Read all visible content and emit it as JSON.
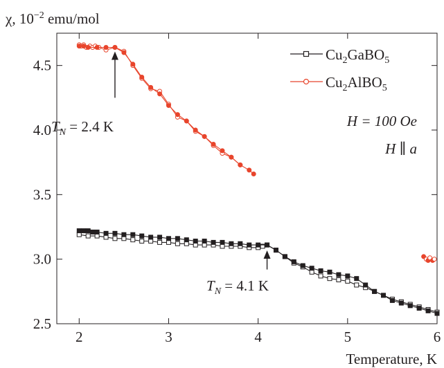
{
  "chart_data": {
    "type": "scatter",
    "title": "",
    "ylabel": "χ, 10",
    "ylabel_exp": "−2",
    "ylabel_unit": " emu/mol",
    "xlabel": "Temperature, K",
    "xlim": [
      1.75,
      6.0
    ],
    "ylim": [
      2.5,
      4.75
    ],
    "xticks": [
      2,
      3,
      4,
      5,
      6
    ],
    "yticks": [
      2.5,
      3.0,
      3.5,
      4.0,
      4.5
    ],
    "xtick_labels": [
      "2",
      "3",
      "4",
      "5",
      "6"
    ],
    "ytick_labels": [
      "2.5",
      "3.0",
      "3.5",
      "4.0",
      "4.5"
    ],
    "legend_position": "top-right",
    "series": [
      {
        "name_main": "Cu",
        "name_sub1": "2",
        "name_mid": "GaBO",
        "name_sub2": "5",
        "color": "#231f20",
        "marker": "square",
        "heating": {
          "x": [
            2.0,
            2.05,
            2.1,
            2.15,
            2.2,
            2.3,
            2.4,
            2.5,
            2.6,
            2.7,
            2.8,
            2.9,
            3.0,
            3.1,
            3.2,
            3.3,
            3.4,
            3.5,
            3.6,
            3.7,
            3.8,
            3.9,
            4.0,
            4.1,
            4.2,
            4.3,
            4.4,
            4.5,
            4.6,
            4.7,
            4.8,
            4.9,
            5.0,
            5.1,
            5.2,
            5.3,
            5.4,
            5.5,
            5.6,
            5.7,
            5.8,
            5.9,
            6.0
          ],
          "y": [
            3.22,
            3.22,
            3.22,
            3.21,
            3.21,
            3.2,
            3.2,
            3.19,
            3.19,
            3.18,
            3.17,
            3.17,
            3.16,
            3.16,
            3.15,
            3.14,
            3.14,
            3.13,
            3.13,
            3.12,
            3.12,
            3.11,
            3.11,
            3.11,
            3.07,
            3.02,
            2.98,
            2.95,
            2.93,
            2.91,
            2.9,
            2.88,
            2.87,
            2.85,
            2.8,
            2.75,
            2.72,
            2.68,
            2.66,
            2.64,
            2.62,
            2.6,
            2.58
          ]
        },
        "cooling": {
          "x": [
            2.0,
            2.1,
            2.2,
            2.3,
            2.4,
            2.5,
            2.6,
            2.7,
            2.8,
            2.9,
            3.0,
            3.1,
            3.2,
            3.3,
            3.4,
            3.5,
            3.6,
            3.7,
            3.8,
            3.9,
            4.0,
            4.05,
            4.1,
            4.2,
            4.3,
            4.4,
            4.5,
            4.6,
            4.7,
            4.8,
            4.9,
            5.0,
            5.1,
            5.2,
            5.3,
            5.4,
            5.5,
            5.6,
            5.7,
            5.8,
            5.9,
            6.0
          ],
          "y": [
            3.19,
            3.18,
            3.18,
            3.17,
            3.16,
            3.16,
            3.15,
            3.14,
            3.14,
            3.13,
            3.13,
            3.12,
            3.12,
            3.11,
            3.11,
            3.11,
            3.1,
            3.1,
            3.1,
            3.09,
            3.09,
            3.1,
            3.11,
            3.07,
            3.02,
            2.97,
            2.94,
            2.9,
            2.87,
            2.85,
            2.84,
            2.83,
            2.8,
            2.78,
            2.75,
            2.72,
            2.69,
            2.67,
            2.65,
            2.63,
            2.61,
            2.59
          ]
        }
      },
      {
        "name_main": "Cu",
        "name_sub1": "2",
        "name_mid": "AlBO",
        "name_sub2": "5",
        "color": "#e8452c",
        "marker": "circle",
        "heating": {
          "x": [
            2.0,
            2.05,
            2.1,
            2.2,
            2.3,
            2.4,
            2.5,
            2.6,
            2.7,
            2.8,
            2.9,
            3.0,
            3.1,
            3.2,
            3.3,
            3.4,
            3.5,
            3.6,
            3.7,
            3.8,
            3.9,
            3.95
          ],
          "y": [
            4.65,
            4.65,
            4.64,
            4.64,
            4.64,
            4.64,
            4.6,
            4.51,
            4.41,
            4.33,
            4.28,
            4.19,
            4.12,
            4.07,
            4.0,
            3.95,
            3.89,
            3.84,
            3.79,
            3.73,
            3.69,
            3.66
          ]
        },
        "cooling": {
          "x": [
            2.0,
            2.02,
            2.05,
            2.08,
            2.12,
            2.15,
            2.18,
            2.22,
            2.3,
            2.4,
            2.5,
            2.6,
            2.7,
            2.8,
            2.9,
            3.0,
            3.1,
            3.2,
            3.3,
            3.4,
            3.5,
            3.6,
            3.7,
            3.8
          ],
          "y": [
            4.66,
            4.65,
            4.66,
            4.64,
            4.65,
            4.64,
            4.65,
            4.64,
            4.62,
            4.64,
            4.61,
            4.5,
            4.4,
            4.32,
            4.3,
            4.2,
            4.1,
            4.07,
            3.99,
            3.95,
            3.88,
            3.82,
            3.79,
            3.73
          ]
        },
        "extra_points": {
          "x": [
            5.85,
            5.88,
            5.9,
            5.92,
            5.95,
            5.97
          ],
          "y": [
            3.02,
            3.0,
            2.99,
            3.01,
            2.99,
            3.0
          ]
        }
      }
    ],
    "annotations": [
      {
        "label_main": "T",
        "label_sub": "N",
        "label_rest": " = 2.4 K",
        "arrow_x": 2.4,
        "arrow_y_tip": 4.64,
        "arrow_y_tail": 4.25
      },
      {
        "label_main": "T",
        "label_sub": "N",
        "label_rest": " = 4.1 K",
        "arrow_x": 4.1,
        "arrow_y_tip": 3.1,
        "arrow_y_tail": 2.92
      }
    ],
    "field_label_1": "H = 100 Oe",
    "field_label_2": "H ∥ a"
  }
}
